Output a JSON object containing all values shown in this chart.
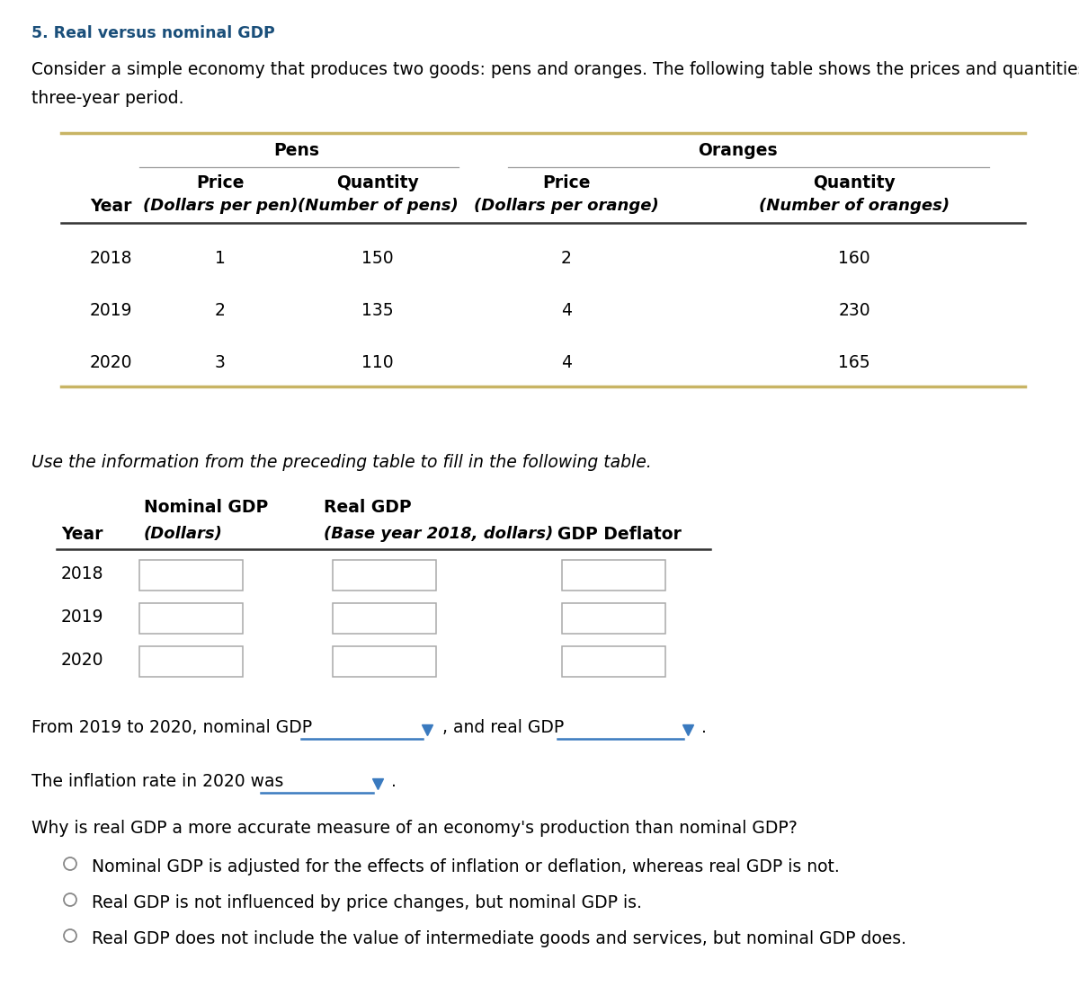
{
  "title": "5. Real versus nominal GDP",
  "title_color": "#1a4f7a",
  "intro_line1": "Consider a simple economy that produces two goods: pens and oranges. The following table shows the prices and quantities of the goods over a",
  "intro_line2": "three-year period.",
  "table1_rows": [
    {
      "year": "2018",
      "pen_price": "1",
      "pen_qty": "150",
      "orange_price": "2",
      "orange_qty": "160"
    },
    {
      "year": "2019",
      "pen_price": "2",
      "pen_qty": "135",
      "orange_price": "4",
      "orange_qty": "230"
    },
    {
      "year": "2020",
      "pen_price": "3",
      "pen_qty": "110",
      "orange_price": "4",
      "orange_qty": "165"
    }
  ],
  "instruction_text": "Use the information from the preceding table to fill in the following table.",
  "table2_years": [
    "2018",
    "2019",
    "2020"
  ],
  "sentence1_part1": "From 2019 to 2020, nominal GDP",
  "sentence1_part2": ", and real GDP",
  "sentence1_part3": ".",
  "sentence2_part1": "The inflation rate in 2020 was",
  "sentence2_part2": ".",
  "question": "Why is real GDP a more accurate measure of an economy's production than nominal GDP?",
  "options": [
    "Nominal GDP is adjusted for the effects of inflation or deflation, whereas real GDP is not.",
    "Real GDP is not influenced by price changes, but nominal GDP is.",
    "Real GDP does not include the value of intermediate goods and services, but nominal GDP does."
  ],
  "border_color": "#c8b464",
  "box_edge_color": "#aaaaaa",
  "underline_color": "#3a7abf",
  "arrow_color": "#3a7abf",
  "radio_color": "#888888"
}
